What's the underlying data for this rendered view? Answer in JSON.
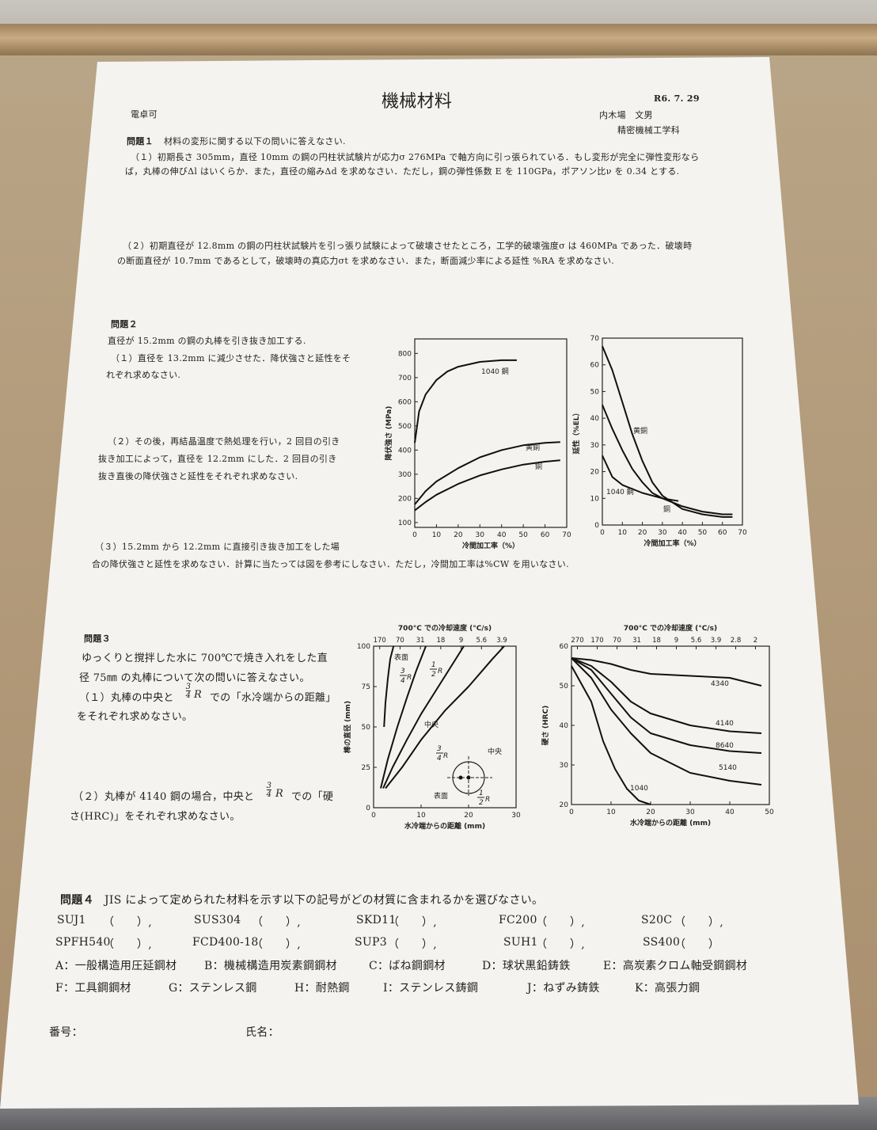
{
  "header": {
    "title": "機械材料",
    "date": "R6. 7. 29",
    "calculator": "電卓可",
    "author": "内木場　文男",
    "department": "精密機械工学科"
  },
  "q1": {
    "title": "問題１",
    "intro": "材料の変形に関する以下の問いに答えなさい.",
    "p1_line1": "（１）初期長さ 305mm，直径 10mm の鋼の円柱状試験片が応力σ 276MPa で軸方向に引っ張られている．もし変形が完全に弾性変形なら",
    "p1_line2": "ば，丸棒の伸びΔl はいくらか．また，直径の縮みΔd を求めなさい．ただし，鋼の弾性係数 E を 110GPa，ポアソン比ν を 0.34 とする.",
    "p2_line1": "（２）初期直径が 12.8mm の鋼の円柱状試験片を引っ張り試験によって破壊させたところ，工学的破壊強度σ は 460MPa であった．破壊時",
    "p2_line2": "の断面直径が 10.7mm であるとして，破壊時の真応力σt を求めなさい．また，断面減少率による延性 %RA を求めなさい."
  },
  "q2": {
    "title": "問題２",
    "intro": "直径が 15.2mm の鋼の丸棒を引き抜き加工する.",
    "p1_line1": "（１）直径を 13.2mm に減少させた．降伏強さと延性をそ",
    "p1_line2": "れぞれ求めなさい.",
    "p2_line1": "（２）その後，再結晶温度で熱処理を行い，2 回目の引き",
    "p2_line2": "抜き加工によって，直径を 12.2mm にした．2 回目の引き",
    "p2_line3": "抜き直後の降伏強さと延性をそれぞれ求めなさい.",
    "p3_line1": "（３）15.2mm から 12.2mm に直接引き抜き加工をした場",
    "p3_line2": "合の降伏強さと延性を求めなさい．計算に当たっては図を参考にしなさい．ただし，冷間加工率は%CW を用いなさい."
  },
  "q3": {
    "title": "問題３",
    "line1": "ゆっくりと撹拌した水に 700℃で焼き入れをした直",
    "line2": "径 75㎜ の丸棒について次の問いに答えなさい。",
    "p1_a": "（１）丸棒の中央と",
    "p1_b": "での「水冷端からの距離」",
    "p1_c": "をそれぞれ求めなさい。",
    "p2_a": "（２）丸棒が 4140 鋼の場合，中央と",
    "p2_b": "での「硬",
    "p2_c": "さ(HRC)」をそれぞれ求めなさい。",
    "frac_num": "3",
    "frac_den": "4",
    "frac_var": "R"
  },
  "q4": {
    "title": "問題４",
    "intro": "JIS によって定められた材料を示す以下の記号がどの材質に含まれるかを選びなさい。",
    "row1": [
      {
        "code": "SUJ1",
        "blank": "（　　）,"
      },
      {
        "code": "SUS304",
        "blank": "（　　）,"
      },
      {
        "code": "SKD11",
        "blank": "（　　）,"
      },
      {
        "code": "FC200",
        "blank": "（　　）,"
      },
      {
        "code": "S20C",
        "blank": "（　　）,"
      }
    ],
    "row2": [
      {
        "code": "SPFH540",
        "blank": "（　　）,"
      },
      {
        "code": "FCD400-18",
        "blank": "（　　）,"
      },
      {
        "code": "SUP3",
        "blank": "（　　）,"
      },
      {
        "code": "SUH1",
        "blank": "（　　）,"
      },
      {
        "code": "SS400",
        "blank": "（　　）"
      }
    ],
    "options_row1": [
      "A：一般構造用圧延鋼材",
      "B：機械構造用炭素鋼鋼材",
      "C：ばね鋼鋼材",
      "D：球状黒鉛鋳鉄",
      "E：高炭素クロム軸受鋼鋼材"
    ],
    "options_row2": [
      "F：工具鋼鋼材",
      "G：ステンレス鋼",
      "H：耐熱鋼",
      "I：ステンレス鋳鋼",
      "J：ねずみ鋳鉄",
      "K：高張力鋼"
    ]
  },
  "footer": {
    "number_label": "番号：",
    "name_label": "氏名："
  },
  "chart_data": [
    {
      "type": "line",
      "xlabel": "冷間加工率（%）",
      "ylabel": "降伏強さ (MPa)",
      "xlim": [
        0,
        70
      ],
      "ylim": [
        80,
        860
      ],
      "xticks": [
        0,
        10,
        20,
        30,
        40,
        50,
        60,
        70
      ],
      "yticks": [
        100,
        200,
        300,
        400,
        500,
        600,
        700,
        800
      ],
      "series": [
        {
          "name": "1040 鋼",
          "x": [
            0,
            2,
            5,
            10,
            15,
            20,
            30,
            40,
            47
          ],
          "y": [
            430,
            560,
            630,
            690,
            725,
            745,
            765,
            772,
            772
          ]
        },
        {
          "name": "黄銅",
          "x": [
            0,
            5,
            10,
            20,
            30,
            40,
            50,
            60,
            67
          ],
          "y": [
            175,
            230,
            270,
            325,
            370,
            400,
            420,
            430,
            433
          ]
        },
        {
          "name": "銅",
          "x": [
            0,
            5,
            10,
            20,
            30,
            40,
            50,
            60,
            67
          ],
          "y": [
            150,
            185,
            215,
            260,
            295,
            320,
            340,
            352,
            358
          ]
        }
      ]
    },
    {
      "type": "line",
      "xlabel": "冷間加工率（%）",
      "ylabel": "延性（%EL）",
      "xlim": [
        0,
        70
      ],
      "ylim": [
        0,
        70
      ],
      "xticks": [
        0,
        10,
        20,
        30,
        40,
        50,
        60,
        70
      ],
      "yticks": [
        0,
        10,
        20,
        30,
        40,
        50,
        60,
        70
      ],
      "series": [
        {
          "name": "黄銅",
          "x": [
            0,
            5,
            10,
            15,
            20,
            25,
            30,
            40,
            50,
            60,
            65
          ],
          "y": [
            67,
            58,
            46,
            34,
            24,
            16,
            11,
            6,
            4,
            3,
            3
          ]
        },
        {
          "name": "1040 鋼",
          "x": [
            0,
            5,
            10,
            20,
            30,
            38
          ],
          "y": [
            26,
            18,
            15,
            12,
            10,
            9
          ]
        },
        {
          "name": "銅",
          "x": [
            0,
            5,
            10,
            15,
            20,
            25,
            30,
            40,
            50,
            60,
            65
          ],
          "y": [
            45,
            36,
            28,
            21,
            16,
            12,
            10,
            7,
            5,
            4,
            4
          ]
        }
      ]
    },
    {
      "type": "line",
      "title": "700°C での冷却速度 (°C/s)",
      "xlabel": "水冷端からの距離 (mm)",
      "ylabel": "棒の直径 (mm)",
      "xlim": [
        0,
        30
      ],
      "ylim": [
        0,
        100
      ],
      "xticks": [
        0,
        10,
        20,
        30
      ],
      "yticks": [
        0,
        25,
        50,
        75,
        100
      ],
      "top_ticks": [
        "170",
        "70",
        "31",
        "18",
        "9",
        "5.6",
        "3.9"
      ],
      "annotations": [
        "表面",
        "中央",
        "表面",
        "中央"
      ],
      "series": [
        {
          "name": "表面",
          "x": [
            2.2,
            2.5,
            3,
            3.5,
            4.2
          ],
          "y": [
            50,
            65,
            80,
            92,
            100
          ]
        },
        {
          "name": "3/4R",
          "x": [
            1.5,
            3,
            5,
            7,
            9,
            11
          ],
          "y": [
            12,
            30,
            50,
            68,
            85,
            100
          ]
        },
        {
          "name": "1/2R",
          "x": [
            2,
            4,
            7,
            10,
            13,
            16,
            19
          ],
          "y": [
            12,
            25,
            42,
            58,
            72,
            86,
            100
          ]
        },
        {
          "name": "中央",
          "x": [
            2.5,
            6,
            10,
            15,
            20,
            25,
            27.5
          ],
          "y": [
            12,
            25,
            42,
            60,
            75,
            92,
            100
          ]
        }
      ]
    },
    {
      "type": "line",
      "title": "700°C での冷却速度 (°C/s)",
      "xlabel": "水冷端からの距離 (mm)",
      "ylabel": "硬さ (HRC)",
      "xlim": [
        0,
        50
      ],
      "ylim": [
        20,
        60
      ],
      "xticks": [
        0,
        10,
        20,
        30,
        40,
        50
      ],
      "yticks": [
        20,
        30,
        40,
        50,
        60
      ],
      "top_ticks": [
        "270",
        "170",
        "70",
        "31",
        "18",
        "9",
        "5.6",
        "3.9",
        "2.8",
        "2"
      ],
      "series": [
        {
          "name": "4340",
          "x": [
            0,
            5,
            10,
            15,
            20,
            30,
            40,
            48
          ],
          "y": [
            57,
            56.5,
            55.5,
            54,
            53,
            52.5,
            52,
            50
          ]
        },
        {
          "name": "4140",
          "x": [
            0,
            5,
            10,
            15,
            20,
            30,
            40,
            48
          ],
          "y": [
            57,
            55,
            51,
            46,
            43,
            40,
            38.5,
            38
          ]
        },
        {
          "name": "8640",
          "x": [
            0,
            5,
            10,
            15,
            20,
            30,
            40,
            48
          ],
          "y": [
            57,
            54,
            48,
            42,
            38,
            35,
            33.5,
            33
          ]
        },
        {
          "name": "5140",
          "x": [
            0,
            5,
            10,
            15,
            20,
            30,
            40,
            48
          ],
          "y": [
            57,
            52,
            44,
            38,
            33,
            28,
            26,
            25
          ]
        },
        {
          "name": "1040",
          "x": [
            0,
            5,
            8,
            11,
            14,
            17,
            20
          ],
          "y": [
            55,
            46,
            36,
            29,
            24,
            21,
            20
          ]
        }
      ]
    }
  ]
}
